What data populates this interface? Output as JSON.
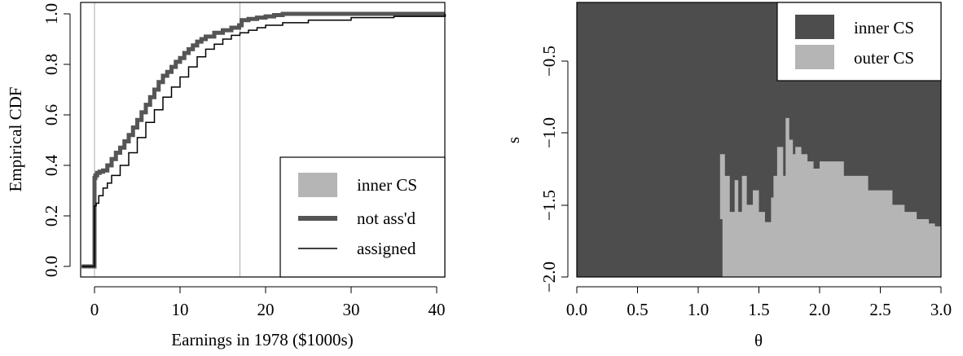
{
  "chart_data": [
    {
      "type": "line",
      "title": "",
      "xlabel": "Earnings in 1978 ($1000s)",
      "ylabel": "Empirical CDF",
      "xlim": [
        -1.5,
        41
      ],
      "ylim": [
        0,
        1.0
      ],
      "xticks": [
        "0",
        "10",
        "20",
        "30",
        "40"
      ],
      "yticks": [
        "0.0",
        "0.2",
        "0.4",
        "0.6",
        "0.8",
        "1.0"
      ],
      "vlines": [
        0,
        17
      ],
      "legend_position": "bottom-right",
      "legend": [
        "inner CS",
        "not ass'd",
        "assigned"
      ],
      "band": {
        "name": "inner CS",
        "color": "#b5b5b5"
      },
      "series": [
        {
          "name": "not ass'd",
          "color": "#555555",
          "x": [
            -1.5,
            0,
            0,
            0.1,
            0.3,
            0.6,
            1,
            1.5,
            2,
            2.5,
            3,
            3.5,
            4,
            4.5,
            5,
            5.5,
            6,
            6.5,
            7,
            7.5,
            8,
            8.5,
            9,
            9.5,
            10,
            10.5,
            11,
            11.5,
            12,
            12.5,
            13,
            14,
            15,
            16,
            16.9,
            17.2,
            18,
            19,
            20,
            21,
            22,
            25,
            30,
            35,
            41
          ],
          "y": [
            0,
            0,
            0.35,
            0.36,
            0.37,
            0.375,
            0.38,
            0.4,
            0.425,
            0.45,
            0.47,
            0.495,
            0.52,
            0.55,
            0.58,
            0.61,
            0.64,
            0.67,
            0.7,
            0.73,
            0.755,
            0.77,
            0.79,
            0.81,
            0.825,
            0.845,
            0.86,
            0.875,
            0.89,
            0.9,
            0.91,
            0.925,
            0.935,
            0.945,
            0.955,
            0.975,
            0.98,
            0.985,
            0.99,
            0.995,
            1.0,
            1.0,
            1.0,
            1.0,
            1.0
          ]
        },
        {
          "name": "assigned",
          "color": "#000000",
          "x": [
            -1.5,
            0,
            0,
            0.2,
            0.5,
            1,
            1.5,
            2,
            3,
            4,
            5,
            6,
            7,
            8,
            9,
            10,
            11,
            12,
            13,
            14,
            15,
            16,
            17,
            18,
            19,
            20,
            22,
            25,
            30,
            35,
            41
          ],
          "y": [
            0,
            0,
            0.24,
            0.25,
            0.28,
            0.31,
            0.33,
            0.36,
            0.4,
            0.45,
            0.51,
            0.57,
            0.62,
            0.67,
            0.71,
            0.75,
            0.79,
            0.83,
            0.86,
            0.88,
            0.9,
            0.915,
            0.925,
            0.935,
            0.945,
            0.955,
            0.965,
            0.975,
            0.985,
            0.99,
            1.0
          ]
        }
      ]
    },
    {
      "type": "area",
      "title": "",
      "xlabel": "θ",
      "ylabel": "s",
      "xlim": [
        0,
        3.0
      ],
      "ylim": [
        -2.0,
        -0.1
      ],
      "xticks": [
        "0.0",
        "0.5",
        "1.0",
        "1.5",
        "2.0",
        "2.5",
        "3.0"
      ],
      "yticks": [
        "−2.0",
        "−1.5",
        "−1.0",
        "−0.5"
      ],
      "legend_position": "top-right",
      "legend": [
        "inner CS",
        "outer CS"
      ],
      "series": [
        {
          "name": "inner CS",
          "color": "#4d4d4d"
        },
        {
          "name": "outer CS",
          "color": "#b5b5b5",
          "boundary_theta": [
            1.35,
            1.2,
            1.18,
            1.22,
            1.26,
            1.3,
            1.33,
            1.36,
            1.4,
            1.45,
            1.5,
            1.55,
            1.6,
            1.62,
            1.65,
            1.7,
            1.72,
            1.75,
            1.78,
            1.8,
            1.85,
            1.9,
            1.95,
            2.0,
            2.2,
            2.4,
            2.6,
            2.7,
            2.8,
            2.9,
            2.95,
            3.0
          ],
          "boundary_s": [
            -2.0,
            -1.6,
            -1.15,
            -1.3,
            -1.55,
            -1.33,
            -1.55,
            -1.3,
            -1.5,
            -1.4,
            -1.55,
            -1.62,
            -1.45,
            -1.3,
            -1.1,
            -1.3,
            -0.9,
            -1.05,
            -1.15,
            -1.1,
            -1.15,
            -1.2,
            -1.25,
            -1.2,
            -1.3,
            -1.4,
            -1.5,
            -1.55,
            -1.6,
            -1.63,
            -1.65,
            -1.65
          ]
        }
      ]
    }
  ]
}
